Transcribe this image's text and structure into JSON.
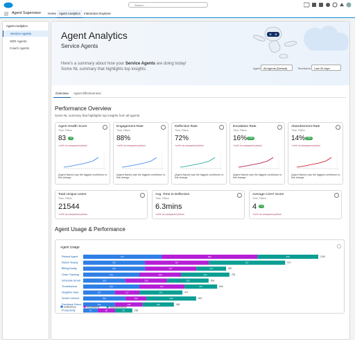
{
  "top_bar": {
    "search": "Search..."
  },
  "nav": {
    "app": "Agent Supervisor",
    "tabs": [
      "Home",
      "Agent Analytics",
      "Interaction Explorer"
    ]
  },
  "sidebar": {
    "heading": "Agent Analytics",
    "items": [
      "Service Agents",
      "SDR Agents",
      "Coach Agents"
    ]
  },
  "hero": {
    "title": "Agent Analytics",
    "subtitle": "Service Agents",
    "summary_pre": "Here's a summary about how your ",
    "summary_bold": "Service Agents",
    "summary_post": " are doing today!",
    "summary_line2": "Some NL summary that highlights top insights.",
    "filters": [
      {
        "label": "Agent",
        "value": "All Agents (Default)"
      },
      {
        "label": "Timeframe",
        "value": "Last 30 days"
      }
    ]
  },
  "tabs": [
    "Overview",
    "Agent Effectiveness"
  ],
  "performance": {
    "title": "Performance Overview",
    "summary": "Some NL summary that highlights top insights from all agents.",
    "cards": [
      {
        "title": "Agent Health Score",
        "subtitle": "Time, Filters",
        "value": "83",
        "badge": "+4",
        "comparison": "+xx% vs compared period",
        "note": "{Agent Name} was the biggest contributor to this change."
      },
      {
        "title": "Engagement Rate",
        "subtitle": "Time, Filters",
        "value": "88%",
        "comparison": "+xx% vs compared period",
        "note": "{Agent Name} was the biggest contributor to this change."
      },
      {
        "title": "Deflection Rate",
        "subtitle": "Time, Filters",
        "value": "72%",
        "comparison": "+xx% vs compared period",
        "note": "{Agent Name} was the biggest contributor to this change."
      },
      {
        "title": "Escalation Rate",
        "subtitle": "Time, Filters",
        "value": "16%",
        "badge": "+2%",
        "comparison": "+xx% vs compared period",
        "note": "{Agent Name} was the biggest contributor to this change."
      },
      {
        "title": "Abandonment Rate",
        "subtitle": "Time, Filters",
        "value": "14%",
        "badge": "+2%",
        "comparison": "+xx% vs compared period",
        "note": "{Agent Name} was the biggest contributor to this change."
      }
    ],
    "small_cards": [
      {
        "title": "Total Unique Users",
        "subtitle": "Time, Filters",
        "value": "21544",
        "comparison": "+xx% vs compared period"
      },
      {
        "title": "Avg. Time to Deflection",
        "subtitle": "Time, Filters",
        "value": "6.3mins",
        "comparison": "+xx% vs compared period"
      },
      {
        "title": "Average CSAT Score",
        "subtitle": "Time, Filters",
        "value": "4",
        "badge": "+1",
        "comparison": "+xx% vs compared period"
      }
    ]
  },
  "usage": {
    "title": "Agent Usage & Performance"
  },
  "chart_data": {
    "type": "bar",
    "orientation": "horizontal",
    "stacked": true,
    "title": "Agent Usage",
    "categories": [
      "Refund Agent",
      "Return Ready",
      "Billing Buddy",
      "Order Tracking",
      "Schedule Smart",
      "Troubleshoot",
      "Neighbor Help",
      "Smart Connect",
      "Feedback Friend",
      "Productivity"
    ],
    "series": [
      {
        "name": "Deflections",
        "color": "#2e7fe6",
        "values": [
          377,
          297,
          297,
          270,
          203,
          270,
          153,
          203,
          153,
          70
        ]
      },
      {
        "name": "Escalations",
        "color": "#b51fd6",
        "values": [
          460,
          307,
          247,
          200,
          200,
          217,
          117,
          100,
          133,
          83
        ]
      },
      {
        "name": "Abandonments",
        "color": "#0c9e94",
        "values": [
          293,
          367,
          143,
          233,
          200,
          157,
          207,
          240,
          150,
          83
        ]
      }
    ],
    "totals": [
      1130,
      971,
      687,
      703,
      603,
      644,
      477,
      543,
      436,
      236
    ],
    "xlim": [
      0,
      1200
    ]
  }
}
